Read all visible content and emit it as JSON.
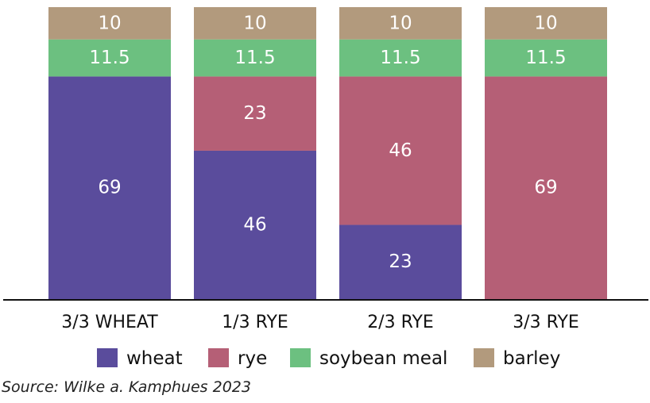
{
  "chart_data": {
    "type": "bar",
    "stacked": true,
    "categories": [
      "3/3 WHEAT",
      "1/3 RYE",
      "2/3 RYE",
      "3/3 RYE"
    ],
    "series": [
      {
        "name": "wheat",
        "values": [
          69,
          46,
          23,
          0
        ],
        "color": "#5a4c9c"
      },
      {
        "name": "rye",
        "values": [
          0,
          23,
          46,
          69
        ],
        "color": "#b55f76"
      },
      {
        "name": "soybean meal",
        "values": [
          11.5,
          11.5,
          11.5,
          11.5
        ],
        "color": "#6cc080"
      },
      {
        "name": "barley",
        "values": [
          10,
          10,
          10,
          10
        ],
        "color": "#b29a7d"
      }
    ],
    "data_labels": [
      [
        "69",
        "46",
        "23",
        ""
      ],
      [
        "",
        "23",
        "46",
        "69"
      ],
      [
        "11.5",
        "11.5",
        "11.5",
        "11.5"
      ],
      [
        "10",
        "10",
        "10",
        "10"
      ]
    ],
    "ylim": [
      0,
      90.5
    ],
    "legend_position": "bottom",
    "grid": false
  },
  "source": "Source: Wilke a. Kamphues 2023"
}
